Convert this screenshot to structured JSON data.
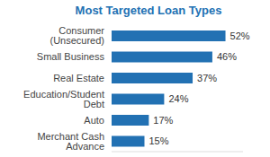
{
  "chart_data": {
    "type": "bar",
    "orientation": "horizontal",
    "title": "Most Targeted Loan Types",
    "categories": [
      "Consumer (Unsecured)",
      "Small Business",
      "Real Estate",
      "Education/Student Debt",
      "Auto",
      "Merchant Cash Advance"
    ],
    "values": [
      52,
      46,
      37,
      24,
      17,
      15
    ],
    "value_labels": [
      "52%",
      "46%",
      "37%",
      "24%",
      "17%",
      "15%"
    ],
    "data_labels": true,
    "color": "#2271b3",
    "xlim": [
      0,
      60
    ],
    "grid": false,
    "tick_labels": "y"
  }
}
